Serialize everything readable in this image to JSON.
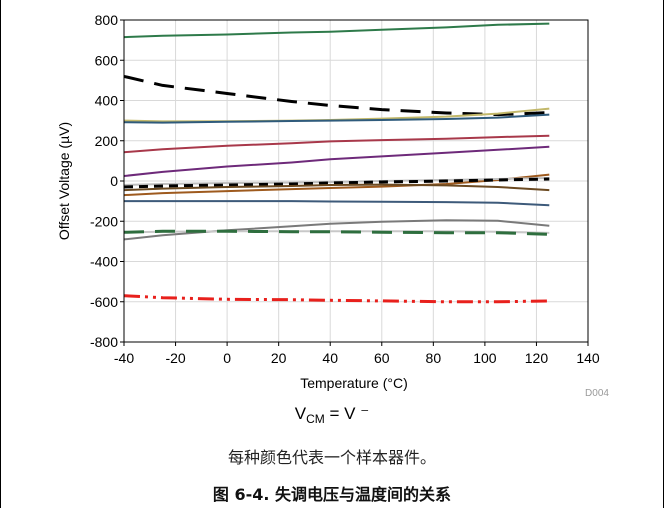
{
  "chart_data": {
    "type": "line",
    "xlabel": "Temperature (°C)",
    "ylabel": "Offset Voltage (µV)",
    "xlim": [
      -40,
      140
    ],
    "ylim": [
      -800,
      800
    ],
    "x_ticks": [
      "-40",
      "-20",
      "0",
      "20",
      "40",
      "60",
      "80",
      "100",
      "120",
      "140"
    ],
    "y_ticks": [
      "800",
      "600",
      "400",
      "200",
      "0",
      "-200",
      "-400",
      "-600",
      "-800"
    ],
    "grid": true,
    "watermark": "D004",
    "x": [
      -40,
      -25,
      0,
      25,
      40,
      60,
      85,
      105,
      125
    ],
    "series": [
      {
        "color": "#2e7a4a",
        "dash": "solid",
        "values": [
          715,
          722,
          728,
          738,
          742,
          752,
          763,
          776,
          782
        ]
      },
      {
        "color": "#000000",
        "dash": "longdash",
        "values": [
          520,
          475,
          435,
          395,
          375,
          355,
          338,
          330,
          340
        ]
      },
      {
        "color": "#c2b86a",
        "dash": "solid",
        "values": [
          300,
          296,
          297,
          300,
          303,
          310,
          320,
          335,
          360
        ]
      },
      {
        "color": "#2f5b7c",
        "dash": "solid",
        "values": [
          292,
          290,
          294,
          298,
          300,
          303,
          308,
          315,
          330
        ]
      },
      {
        "color": "#a8384a",
        "dash": "solid",
        "values": [
          143,
          158,
          175,
          188,
          197,
          203,
          210,
          218,
          225
        ]
      },
      {
        "color": "#6e2a7a",
        "dash": "solid",
        "values": [
          25,
          45,
          72,
          92,
          108,
          122,
          140,
          155,
          170
        ]
      },
      {
        "color": "#9e5a1e",
        "dash": "solid",
        "values": [
          -70,
          -60,
          -50,
          -40,
          -35,
          -28,
          -15,
          5,
          32
        ]
      },
      {
        "color": "#bfbfbf",
        "dash": "solid",
        "values": [
          -20,
          -15,
          -10,
          -8,
          -5,
          0,
          5,
          10,
          15
        ]
      },
      {
        "color": "#000000",
        "dash": "dash",
        "values": [
          -30,
          -25,
          -20,
          -15,
          -10,
          -5,
          0,
          5,
          10
        ]
      },
      {
        "color": "#6b4a22",
        "dash": "solid",
        "values": [
          -45,
          -38,
          -30,
          -25,
          -20,
          -18,
          -22,
          -30,
          -45
        ]
      },
      {
        "color": "#3d5a7a",
        "dash": "solid",
        "values": [
          -100,
          -100,
          -100,
          -100,
          -102,
          -103,
          -105,
          -108,
          -120
        ]
      },
      {
        "color": "#7a7a7a",
        "dash": "solid",
        "values": [
          -290,
          -270,
          -245,
          -225,
          -212,
          -202,
          -195,
          -198,
          -222
        ]
      },
      {
        "color": "#c8c8c8",
        "dash": "solid",
        "values": [
          -255,
          -252,
          -250,
          -250,
          -250,
          -250,
          -250,
          -252,
          -258
        ]
      },
      {
        "color": "#2e6e3e",
        "dash": "longdash",
        "values": [
          -255,
          -250,
          -250,
          -252,
          -252,
          -255,
          -257,
          -257,
          -265
        ]
      },
      {
        "color": "#e8201c",
        "dash": "dashdotdot",
        "values": [
          -570,
          -580,
          -588,
          -590,
          -593,
          -596,
          -600,
          -600,
          -596
        ]
      }
    ]
  },
  "captions": {
    "vcm_main": "V",
    "vcm_sub": "CM",
    "vcm_rest": " = V ⁻",
    "note": "每种颜色代表一个样本器件。",
    "figure_title": "图 6-4. 失调电压与温度间的关系"
  }
}
